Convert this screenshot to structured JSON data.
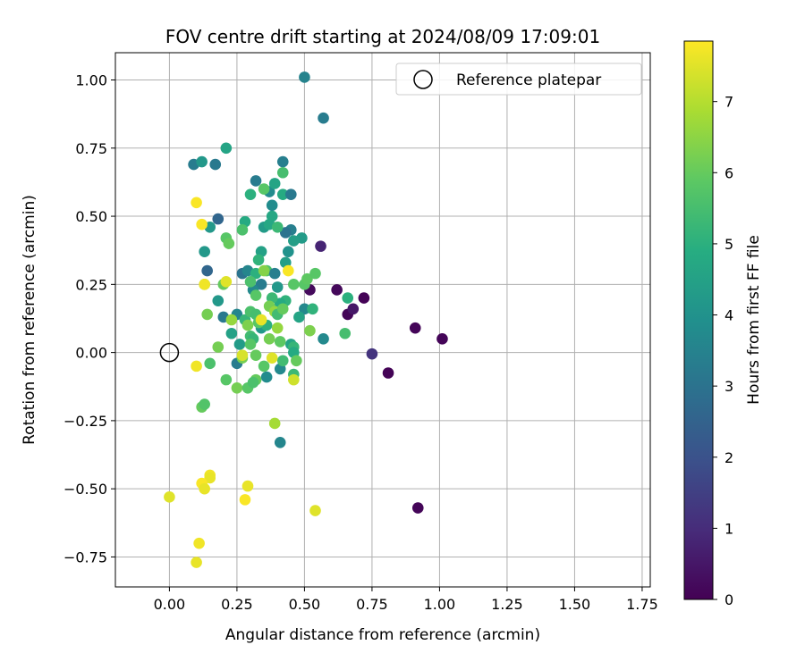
{
  "chart_data": {
    "type": "scatter",
    "title": "FOV centre drift starting at 2024/08/09 17:09:01",
    "xlabel": "Angular distance from reference (arcmin)",
    "ylabel": "Rotation from reference (arcmin)",
    "xlim": [
      -0.2,
      1.78
    ],
    "ylim": [
      -0.86,
      1.1
    ],
    "xticks": [
      "0.00",
      "0.25",
      "0.50",
      "0.75",
      "1.00",
      "1.25",
      "1.50",
      "1.75"
    ],
    "xtick_values": [
      0,
      0.25,
      0.5,
      0.75,
      1.0,
      1.25,
      1.5,
      1.75
    ],
    "yticks": [
      "−0.75",
      "−0.50",
      "−0.25",
      "0.00",
      "0.25",
      "0.50",
      "0.75",
      "1.00"
    ],
    "ytick_values": [
      -0.75,
      -0.5,
      -0.25,
      0,
      0.25,
      0.5,
      0.75,
      1.0
    ],
    "grid": true,
    "legend": {
      "position": "top-right",
      "entries": [
        "Reference platepar"
      ]
    },
    "reference_point": {
      "x": 0.0,
      "y": 0.0
    },
    "colorbar": {
      "label": "Hours from first FF file",
      "range": [
        0,
        7.85
      ],
      "ticks": [
        "0",
        "1",
        "2",
        "3",
        "4",
        "5",
        "6",
        "7"
      ],
      "tick_values": [
        0,
        1,
        2,
        3,
        4,
        5,
        6,
        7
      ],
      "colormap": "viridis"
    },
    "points": [
      [
        0.72,
        0.2,
        0.05
      ],
      [
        0.66,
        0.14,
        0.1
      ],
      [
        0.62,
        0.23,
        0.15
      ],
      [
        0.52,
        0.23,
        0.2
      ],
      [
        0.68,
        0.16,
        0.5
      ],
      [
        0.56,
        0.39,
        0.8
      ],
      [
        0.75,
        -0.005,
        1.2
      ],
      [
        0.81,
        -0.075,
        0.05
      ],
      [
        0.91,
        0.09,
        0.1
      ],
      [
        1.01,
        0.05,
        0.1
      ],
      [
        0.92,
        -0.57,
        0.1
      ],
      [
        0.5,
        1.01,
        3.5
      ],
      [
        0.57,
        0.86,
        3.3
      ],
      [
        0.42,
        0.7,
        3.4
      ],
      [
        0.09,
        0.69,
        3.3
      ],
      [
        0.17,
        0.69,
        3.2
      ],
      [
        0.12,
        0.7,
        4.2
      ],
      [
        0.21,
        0.75,
        4.6
      ],
      [
        0.32,
        0.63,
        3.3
      ],
      [
        0.37,
        0.59,
        3.8
      ],
      [
        0.42,
        0.58,
        4.8
      ],
      [
        0.45,
        0.58,
        3.2
      ],
      [
        0.35,
        0.6,
        5.8
      ],
      [
        0.3,
        0.58,
        5.0
      ],
      [
        0.42,
        0.66,
        5.5
      ],
      [
        0.39,
        0.62,
        4.6
      ],
      [
        0.18,
        0.49,
        2.6
      ],
      [
        0.15,
        0.46,
        4.2
      ],
      [
        0.28,
        0.48,
        4.8
      ],
      [
        0.38,
        0.5,
        4.7
      ],
      [
        0.38,
        0.54,
        3.8
      ],
      [
        0.45,
        0.45,
        3.4
      ],
      [
        0.43,
        0.44,
        3.0
      ],
      [
        0.35,
        0.46,
        4.3
      ],
      [
        0.37,
        0.47,
        4.7
      ],
      [
        0.4,
        0.46,
        5.3
      ],
      [
        0.49,
        0.42,
        4.3
      ],
      [
        0.46,
        0.41,
        4.4
      ],
      [
        0.43,
        0.33,
        4.4
      ],
      [
        0.44,
        0.37,
        4.0
      ],
      [
        0.27,
        0.45,
        5.6
      ],
      [
        0.21,
        0.42,
        5.8
      ],
      [
        0.22,
        0.4,
        6.0
      ],
      [
        0.13,
        0.37,
        4.2
      ],
      [
        0.34,
        0.37,
        4.5
      ],
      [
        0.14,
        0.3,
        2.6
      ],
      [
        0.27,
        0.29,
        3.0
      ],
      [
        0.29,
        0.3,
        3.6
      ],
      [
        0.32,
        0.29,
        5.0
      ],
      [
        0.34,
        0.25,
        3.3
      ],
      [
        0.33,
        0.34,
        5.1
      ],
      [
        0.36,
        0.3,
        5.6
      ],
      [
        0.39,
        0.29,
        3.4
      ],
      [
        0.4,
        0.24,
        4.2
      ],
      [
        0.46,
        0.25,
        5.8
      ],
      [
        0.5,
        0.25,
        5.8
      ],
      [
        0.51,
        0.27,
        5.9
      ],
      [
        0.54,
        0.29,
        5.8
      ],
      [
        0.31,
        0.23,
        3.7
      ],
      [
        0.3,
        0.26,
        5.6
      ],
      [
        0.32,
        0.21,
        5.8
      ],
      [
        0.18,
        0.19,
        4.2
      ],
      [
        0.43,
        0.19,
        5.1
      ],
      [
        0.41,
        0.18,
        4.8
      ],
      [
        0.38,
        0.2,
        5.3
      ],
      [
        0.37,
        0.17,
        6.2
      ],
      [
        0.39,
        0.15,
        6.6
      ],
      [
        0.2,
        0.25,
        6.0
      ],
      [
        0.13,
        0.25,
        6.4
      ],
      [
        0.14,
        0.14,
        6.2
      ],
      [
        0.2,
        0.13,
        3.2
      ],
      [
        0.25,
        0.14,
        3.6
      ],
      [
        0.28,
        0.12,
        5.2
      ],
      [
        0.3,
        0.15,
        5.6
      ],
      [
        0.32,
        0.14,
        5.5
      ],
      [
        0.29,
        0.1,
        6.3
      ],
      [
        0.34,
        0.09,
        4.2
      ],
      [
        0.36,
        0.1,
        5.0
      ],
      [
        0.4,
        0.14,
        5.4
      ],
      [
        0.42,
        0.16,
        6.0
      ],
      [
        0.5,
        0.16,
        3.7
      ],
      [
        0.53,
        0.16,
        5.1
      ],
      [
        0.48,
        0.13,
        4.6
      ],
      [
        0.23,
        0.07,
        4.5
      ],
      [
        0.23,
        0.12,
        6.6
      ],
      [
        0.26,
        0.03,
        4.3
      ],
      [
        0.3,
        0.06,
        5.4
      ],
      [
        0.31,
        0.05,
        5.2
      ],
      [
        0.33,
        0.11,
        5.8
      ],
      [
        0.37,
        0.05,
        6.2
      ],
      [
        0.4,
        0.09,
        6.6
      ],
      [
        0.41,
        0.04,
        5.9
      ],
      [
        0.45,
        0.03,
        4.6
      ],
      [
        0.52,
        0.08,
        6.3
      ],
      [
        0.57,
        0.05,
        3.7
      ],
      [
        0.65,
        0.07,
        5.5
      ],
      [
        0.66,
        0.2,
        5.0
      ],
      [
        0.18,
        0.02,
        6.2
      ],
      [
        0.25,
        -0.04,
        3.3
      ],
      [
        0.27,
        -0.02,
        6.2
      ],
      [
        0.3,
        0.03,
        5.8
      ],
      [
        0.32,
        -0.01,
        6.0
      ],
      [
        0.35,
        -0.05,
        5.8
      ],
      [
        0.36,
        -0.09,
        3.8
      ],
      [
        0.41,
        -0.06,
        3.7
      ],
      [
        0.42,
        -0.03,
        5.4
      ],
      [
        0.46,
        0.02,
        5.2
      ],
      [
        0.46,
        0.0,
        4.8
      ],
      [
        0.47,
        -0.03,
        6.0
      ],
      [
        0.46,
        -0.08,
        5.3
      ],
      [
        0.46,
        -0.1,
        7.3
      ],
      [
        0.38,
        -0.02,
        7.5
      ],
      [
        0.34,
        0.12,
        7.6
      ],
      [
        0.1,
        -0.05,
        7.7
      ],
      [
        0.15,
        -0.04,
        5.6
      ],
      [
        0.21,
        -0.1,
        5.8
      ],
      [
        0.25,
        -0.13,
        6.2
      ],
      [
        0.29,
        -0.13,
        5.8
      ],
      [
        0.32,
        -0.1,
        6.0
      ],
      [
        0.31,
        -0.11,
        5.6
      ],
      [
        0.12,
        -0.2,
        6.0
      ],
      [
        0.13,
        -0.19,
        5.7
      ],
      [
        0.41,
        -0.33,
        3.6
      ],
      [
        0.39,
        -0.26,
        6.8
      ],
      [
        0.27,
        -0.01,
        7.4
      ],
      [
        0.35,
        0.3,
        6.4
      ],
      [
        0.44,
        0.3,
        7.8
      ],
      [
        0.21,
        0.26,
        7.5
      ],
      [
        0.13,
        0.25,
        7.7
      ],
      [
        0.1,
        0.55,
        7.8
      ],
      [
        0.12,
        0.47,
        7.8
      ],
      [
        0.0,
        -0.53,
        7.5
      ],
      [
        0.15,
        -0.45,
        7.7
      ],
      [
        0.15,
        -0.46,
        7.6
      ],
      [
        0.12,
        -0.48,
        7.8
      ],
      [
        0.13,
        -0.5,
        7.6
      ],
      [
        0.29,
        -0.49,
        7.6
      ],
      [
        0.28,
        -0.54,
        7.8
      ],
      [
        0.54,
        -0.58,
        7.5
      ],
      [
        0.11,
        -0.7,
        7.7
      ],
      [
        0.1,
        -0.77,
        7.6
      ]
    ]
  }
}
